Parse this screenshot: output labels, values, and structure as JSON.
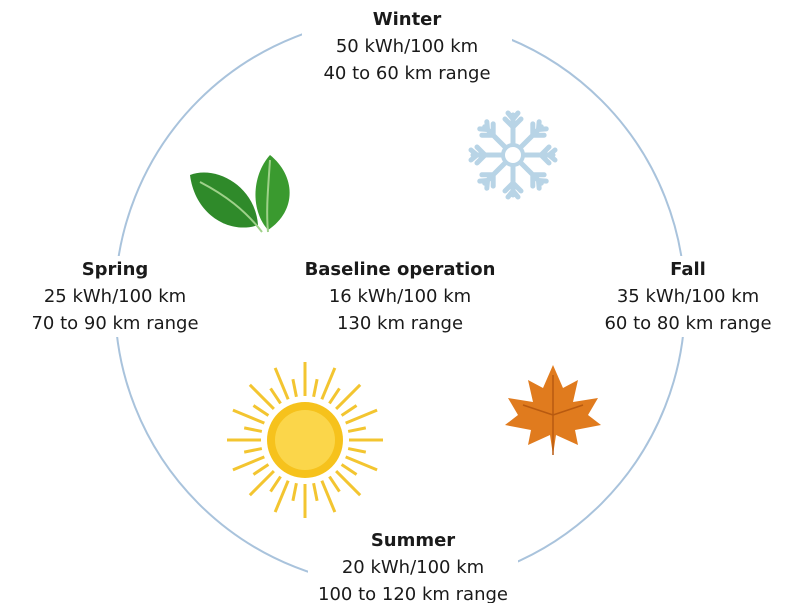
{
  "center": {
    "title": "Baseline operation",
    "lines": [
      "16 kWh/100 km",
      "130 km range"
    ]
  },
  "seasons": [
    {
      "title": "Winter",
      "lines": [
        "50 kWh/100 km",
        "40 to 60 km range"
      ]
    },
    {
      "title": "Spring",
      "lines": [
        "25 kWh/100 km",
        "70 to 90 km range"
      ]
    },
    {
      "title": "Fall",
      "lines": [
        "35 kWh/100 km",
        "60 to 80 km range"
      ]
    },
    {
      "title": "Summer",
      "lines": [
        "20 kWh/100 km",
        "100 to 120 km range"
      ]
    }
  ]
}
